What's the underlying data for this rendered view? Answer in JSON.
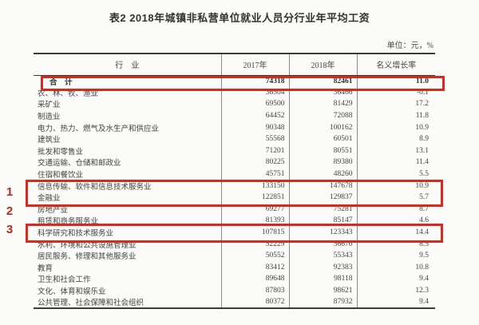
{
  "title": "表2  2018年城镇非私营单位就业人员分行业年平均工资",
  "unit_note": "单位：元，%",
  "table": {
    "columns": [
      "行　业",
      "2017年",
      "2018年",
      "名义增长率"
    ],
    "total": {
      "industry": "合　计",
      "y2017": "74318",
      "y2018": "82461",
      "growth": "11.0"
    },
    "rows": [
      {
        "industry": "农、林、牧、渔业",
        "y2017": "36504",
        "y2018": "36466",
        "growth": "-0.1"
      },
      {
        "industry": "采矿业",
        "y2017": "69500",
        "y2018": "81429",
        "growth": "17.2"
      },
      {
        "industry": "制造业",
        "y2017": "64452",
        "y2018": "72088",
        "growth": "11.8"
      },
      {
        "industry": "电力、热力、燃气及水生产和供应业",
        "y2017": "90348",
        "y2018": "100162",
        "growth": "10.9"
      },
      {
        "industry": "建筑业",
        "y2017": "55568",
        "y2018": "60501",
        "growth": "8.9"
      },
      {
        "industry": "批发和零售业",
        "y2017": "71201",
        "y2018": "80551",
        "growth": "13.1"
      },
      {
        "industry": "交通运输、仓储和邮政业",
        "y2017": "80225",
        "y2018": "89380",
        "growth": "11.4"
      },
      {
        "industry": "住宿和餐饮业",
        "y2017": "45751",
        "y2018": "48260",
        "growth": "5.5"
      },
      {
        "industry": "信息传输、软件和信息技术服务业",
        "y2017": "133150",
        "y2018": "147678",
        "growth": "10.9"
      },
      {
        "industry": "金融业",
        "y2017": "122851",
        "y2018": "129837",
        "growth": "5.7"
      },
      {
        "industry": "房地产业",
        "y2017": "69277",
        "y2018": "75281",
        "growth": "8.7"
      },
      {
        "industry": "租赁和商务服务业",
        "y2017": "81393",
        "y2018": "85147",
        "growth": "4.6"
      },
      {
        "industry": "科学研究和技术服务业",
        "y2017": "107815",
        "y2018": "123343",
        "growth": "14.4"
      },
      {
        "industry": "水利、环境和公共设施管理业",
        "y2017": "52229",
        "y2018": "56670",
        "growth": "8.5"
      },
      {
        "industry": "居民服务、修理和其他服务业",
        "y2017": "50552",
        "y2018": "55343",
        "growth": "9.5"
      },
      {
        "industry": "教育",
        "y2017": "83412",
        "y2018": "92383",
        "growth": "10.8"
      },
      {
        "industry": "卫生和社会工作",
        "y2017": "89648",
        "y2018": "98118",
        "growth": "9.4"
      },
      {
        "industry": "文化、体育和娱乐业",
        "y2017": "87803",
        "y2018": "98621",
        "growth": "12.3"
      },
      {
        "industry": "公共管理、社会保障和社会组织",
        "y2017": "80372",
        "y2018": "87932",
        "growth": "9.4"
      }
    ]
  },
  "annotations": {
    "markers": [
      {
        "label": "1"
      },
      {
        "label": "2"
      },
      {
        "label": "3"
      }
    ]
  },
  "colors": {
    "highlight_red": "#d8291d",
    "marker_red": "#c2251a",
    "border_dark": "#3a3a3a"
  }
}
